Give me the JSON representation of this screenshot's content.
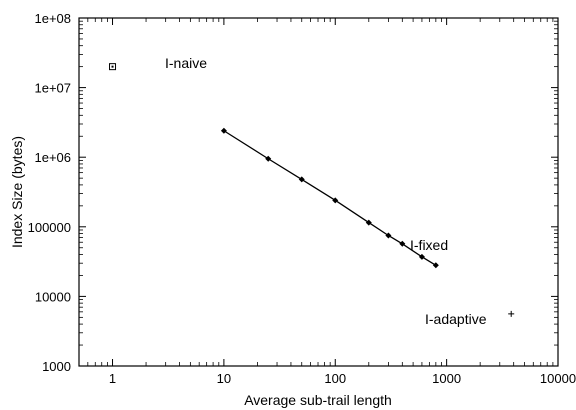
{
  "chart_data": {
    "type": "scatter",
    "xlabel": "Average sub-trail length",
    "ylabel": "Index Size (bytes)",
    "xscale": "log",
    "yscale": "log",
    "xlim": [
      0.5,
      10000
    ],
    "ylim": [
      1000,
      100000000
    ],
    "grid": false,
    "xticks": [
      1,
      10,
      100,
      1000,
      10000
    ],
    "xtick_labels": [
      "1",
      "10",
      "100",
      "1000",
      "10000"
    ],
    "yticks": [
      1000,
      10000,
      100000,
      1000000,
      10000000,
      100000000
    ],
    "ytick_labels": [
      "1000",
      "10000",
      "100000",
      "1e+06",
      "1e+07",
      "1e+08"
    ],
    "series": [
      {
        "name": "I-fixed",
        "marker": "diamond",
        "line": true,
        "x": [
          10,
          25,
          50,
          100,
          200,
          300,
          400,
          600,
          800
        ],
        "y": [
          2400000,
          950000,
          480000,
          240000,
          115000,
          75000,
          57000,
          37000,
          28000
        ]
      },
      {
        "name": "I-naive",
        "marker": "square",
        "line": false,
        "x": [
          1
        ],
        "y": [
          20000000
        ]
      },
      {
        "name": "I-adaptive",
        "marker": "plus",
        "line": false,
        "x": [
          3800
        ],
        "y": [
          5600
        ]
      }
    ]
  }
}
